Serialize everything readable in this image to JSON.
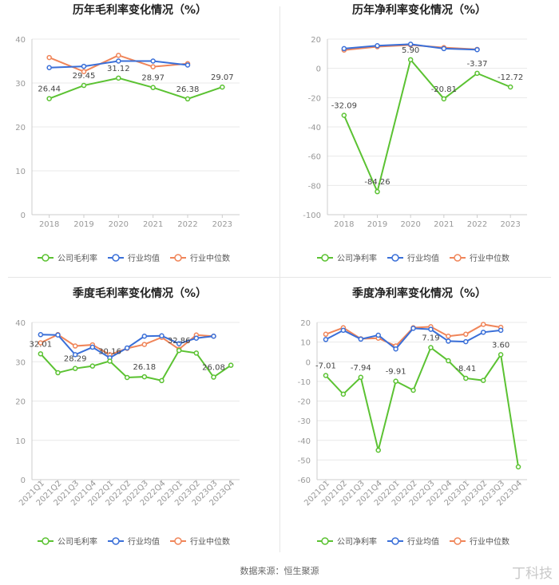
{
  "source": "数据来源：恒生聚源",
  "watermark": "丁科技",
  "colors": {
    "company": "#5bc232",
    "avg": "#3a6fd8",
    "median": "#f08559",
    "axis": "#999999",
    "grid": "#e9e9e9",
    "label": "#444444"
  },
  "chart_data": [
    {
      "type": "line",
      "title": "历年毛利率变化情况（%）",
      "categories": [
        "2018",
        "2019",
        "2020",
        "2021",
        "2022",
        "2023"
      ],
      "ylim": [
        0,
        40
      ],
      "yticks": [
        0,
        10,
        20,
        30,
        40
      ],
      "series": [
        {
          "name": "公司毛利率",
          "key": "company",
          "values": [
            26.44,
            29.45,
            31.12,
            28.97,
            26.38,
            29.07
          ]
        },
        {
          "name": "行业均值",
          "key": "avg",
          "values": [
            33.5,
            33.8,
            35.0,
            35.0,
            34.1,
            null
          ]
        },
        {
          "name": "行业中位数",
          "key": "median",
          "values": [
            35.8,
            32.6,
            36.3,
            33.7,
            34.4,
            null
          ]
        }
      ],
      "data_labels": [
        "26.44",
        "29.45",
        "31.12",
        "28.97",
        "26.38",
        "29.07"
      ],
      "labeled_index": [
        0,
        1,
        2,
        3,
        4,
        5
      ]
    },
    {
      "type": "line",
      "title": "历年净利率变化情况（%）",
      "categories": [
        "2018",
        "2019",
        "2020",
        "2021",
        "2022",
        "2023"
      ],
      "ylim": [
        -100,
        20
      ],
      "yticks": [
        -100,
        -80,
        -60,
        -40,
        -20,
        0,
        20
      ],
      "series": [
        {
          "name": "公司净利率",
          "key": "company",
          "values": [
            -32.09,
            -84.26,
            5.9,
            -20.81,
            -3.37,
            -12.72
          ]
        },
        {
          "name": "行业均值",
          "key": "avg",
          "values": [
            13.5,
            15.5,
            16.5,
            13.5,
            12.8,
            null
          ]
        },
        {
          "name": "行业中位数",
          "key": "median",
          "values": [
            12.5,
            14.8,
            16.0,
            14.2,
            13.0,
            null
          ]
        }
      ],
      "data_labels": [
        "-32.09",
        "-84.26",
        "5.90",
        "-20.81",
        "-3.37",
        "-12.72"
      ],
      "labeled_index": [
        0,
        1,
        2,
        3,
        4,
        5
      ]
    },
    {
      "type": "line",
      "title": "季度毛利率变化情况（%）",
      "categories": [
        "2021Q1",
        "2021Q2",
        "2021Q3",
        "2021Q4",
        "2022Q1",
        "2022Q2",
        "2022Q3",
        "2022Q4",
        "2023Q1",
        "2023Q2",
        "2023Q3",
        "2023Q4"
      ],
      "ylim": [
        0,
        40
      ],
      "yticks": [
        0,
        10,
        20,
        30,
        40
      ],
      "series": [
        {
          "name": "公司毛利率",
          "key": "company",
          "values": [
            32.01,
            27.2,
            28.29,
            28.9,
            30.16,
            26.0,
            26.18,
            25.2,
            32.86,
            32.2,
            26.08,
            29.1
          ]
        },
        {
          "name": "行业均值",
          "key": "avg",
          "values": [
            36.9,
            36.8,
            31.8,
            33.7,
            31.0,
            33.5,
            36.5,
            36.6,
            34.6,
            36.0,
            36.5,
            null
          ]
        },
        {
          "name": "行业中位数",
          "key": "median",
          "values": [
            34.8,
            36.9,
            34.0,
            34.3,
            31.8,
            33.4,
            34.4,
            36.2,
            33.2,
            36.8,
            36.5,
            null
          ]
        }
      ],
      "data_labels": [
        "32.01",
        "28.29",
        "30.16",
        "26.18",
        "32.86",
        "26.08"
      ],
      "labeled_index": [
        0,
        2,
        4,
        6,
        8,
        10
      ]
    },
    {
      "type": "line",
      "title": "季度净利率变化情况（%）",
      "categories": [
        "2021Q1",
        "2021Q2",
        "2021Q3",
        "2021Q4",
        "2022Q1",
        "2022Q2",
        "2022Q3",
        "2022Q4",
        "2023Q1",
        "2023Q2",
        "2023Q3",
        "2023Q4"
      ],
      "ylim": [
        -60,
        20
      ],
      "yticks": [
        -60,
        -50,
        -40,
        -30,
        -20,
        -10,
        0,
        10,
        20
      ],
      "series": [
        {
          "name": "公司净利率",
          "key": "company",
          "values": [
            -7.01,
            -16.5,
            -7.94,
            -45.0,
            -9.91,
            -14.5,
            7.19,
            0.5,
            -8.41,
            -9.5,
            3.6,
            -53.5
          ]
        },
        {
          "name": "行业均值",
          "key": "avg",
          "values": [
            11.3,
            16.0,
            11.5,
            13.5,
            6.5,
            17.0,
            16.5,
            10.5,
            10.2,
            15.0,
            16.0,
            null
          ]
        },
        {
          "name": "行业中位数",
          "key": "median",
          "values": [
            14.0,
            17.3,
            11.7,
            12.0,
            8.0,
            17.3,
            17.8,
            13.0,
            14.0,
            19.0,
            17.5,
            null
          ]
        }
      ],
      "data_labels": [
        "-7.01",
        "-7.94",
        "-9.91",
        "7.19",
        "-8.41",
        "3.60"
      ],
      "labeled_index": [
        0,
        2,
        4,
        6,
        8,
        10
      ]
    }
  ]
}
